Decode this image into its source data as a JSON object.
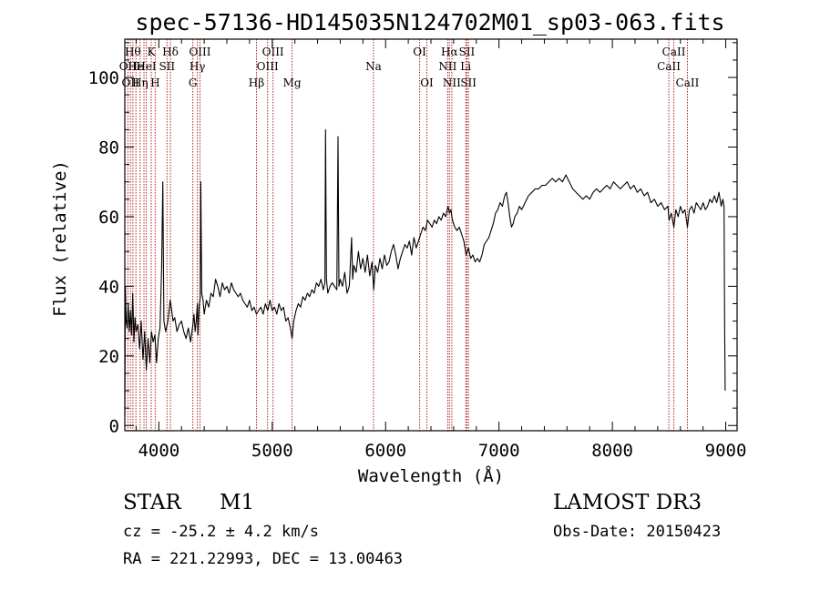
{
  "chart_data": {
    "type": "line",
    "title": "spec-57136-HD145035N124702M01_sp03-063.fits",
    "xlabel": "Wavelength (Å)",
    "ylabel": "Flux (relative)",
    "xlim": [
      3700,
      9100
    ],
    "ylim": [
      -1.5,
      111
    ],
    "x_ticks": [
      4000,
      5000,
      6000,
      7000,
      8000,
      9000
    ],
    "y_ticks": [
      0,
      20,
      40,
      60,
      80,
      100
    ],
    "grid": false,
    "series": [
      {
        "name": "spectrum",
        "points": [
          [
            3700,
            3
          ],
          [
            3705,
            40
          ],
          [
            3712,
            30
          ],
          [
            3720,
            28
          ],
          [
            3730,
            35
          ],
          [
            3740,
            27
          ],
          [
            3750,
            33
          ],
          [
            3760,
            26
          ],
          [
            3770,
            38
          ],
          [
            3780,
            24
          ],
          [
            3790,
            31
          ],
          [
            3800,
            27
          ],
          [
            3815,
            29
          ],
          [
            3830,
            22
          ],
          [
            3845,
            30
          ],
          [
            3860,
            19
          ],
          [
            3875,
            27
          ],
          [
            3890,
            16
          ],
          [
            3905,
            25
          ],
          [
            3920,
            18
          ],
          [
            3935,
            27
          ],
          [
            3950,
            24
          ],
          [
            3965,
            26
          ],
          [
            3980,
            18
          ],
          [
            3995,
            25
          ],
          [
            4010,
            28
          ],
          [
            4025,
            45
          ],
          [
            4035,
            70
          ],
          [
            4045,
            30
          ],
          [
            4060,
            27
          ],
          [
            4080,
            30
          ],
          [
            4100,
            36
          ],
          [
            4110,
            34
          ],
          [
            4125,
            30
          ],
          [
            4140,
            31
          ],
          [
            4160,
            27
          ],
          [
            4180,
            29
          ],
          [
            4200,
            30
          ],
          [
            4220,
            27
          ],
          [
            4240,
            25
          ],
          [
            4260,
            28
          ],
          [
            4280,
            24
          ],
          [
            4300,
            29
          ],
          [
            4310,
            32
          ],
          [
            4320,
            27
          ],
          [
            4330,
            30
          ],
          [
            4340,
            35
          ],
          [
            4345,
            26
          ],
          [
            4355,
            34
          ],
          [
            4365,
            37
          ],
          [
            4370,
            70
          ],
          [
            4378,
            38
          ],
          [
            4390,
            36
          ],
          [
            4400,
            32
          ],
          [
            4420,
            36
          ],
          [
            4440,
            34
          ],
          [
            4460,
            38
          ],
          [
            4480,
            37
          ],
          [
            4500,
            42
          ],
          [
            4520,
            40
          ],
          [
            4540,
            37
          ],
          [
            4560,
            41
          ],
          [
            4580,
            39
          ],
          [
            4600,
            40
          ],
          [
            4620,
            38
          ],
          [
            4640,
            41
          ],
          [
            4660,
            39
          ],
          [
            4680,
            38
          ],
          [
            4700,
            37
          ],
          [
            4720,
            38
          ],
          [
            4740,
            36
          ],
          [
            4760,
            35
          ],
          [
            4780,
            34
          ],
          [
            4800,
            36
          ],
          [
            4820,
            33
          ],
          [
            4840,
            34
          ],
          [
            4861,
            32
          ],
          [
            4880,
            33
          ],
          [
            4900,
            34
          ],
          [
            4920,
            32
          ],
          [
            4940,
            35
          ],
          [
            4960,
            33
          ],
          [
            4980,
            36
          ],
          [
            5000,
            33
          ],
          [
            5020,
            34
          ],
          [
            5040,
            32
          ],
          [
            5060,
            35
          ],
          [
            5080,
            33
          ],
          [
            5100,
            34
          ],
          [
            5120,
            30
          ],
          [
            5140,
            31
          ],
          [
            5160,
            28
          ],
          [
            5175,
            25
          ],
          [
            5190,
            30
          ],
          [
            5210,
            33
          ],
          [
            5230,
            35
          ],
          [
            5250,
            34
          ],
          [
            5270,
            37
          ],
          [
            5290,
            36
          ],
          [
            5310,
            38
          ],
          [
            5330,
            37
          ],
          [
            5350,
            39
          ],
          [
            5370,
            38
          ],
          [
            5390,
            41
          ],
          [
            5410,
            40
          ],
          [
            5430,
            42
          ],
          [
            5450,
            39
          ],
          [
            5465,
            41
          ],
          [
            5470,
            85
          ],
          [
            5478,
            42
          ],
          [
            5490,
            38
          ],
          [
            5510,
            40
          ],
          [
            5530,
            41
          ],
          [
            5550,
            40
          ],
          [
            5570,
            39
          ],
          [
            5580,
            83
          ],
          [
            5588,
            40
          ],
          [
            5600,
            42
          ],
          [
            5620,
            40
          ],
          [
            5640,
            44
          ],
          [
            5660,
            38
          ],
          [
            5680,
            40
          ],
          [
            5700,
            54
          ],
          [
            5710,
            42
          ],
          [
            5720,
            46
          ],
          [
            5740,
            44
          ],
          [
            5760,
            50
          ],
          [
            5780,
            45
          ],
          [
            5800,
            48
          ],
          [
            5820,
            44
          ],
          [
            5840,
            49
          ],
          [
            5860,
            43
          ],
          [
            5880,
            47
          ],
          [
            5895,
            39
          ],
          [
            5910,
            46
          ],
          [
            5930,
            44
          ],
          [
            5950,
            48
          ],
          [
            5970,
            45
          ],
          [
            5990,
            49
          ],
          [
            6010,
            46
          ],
          [
            6030,
            47
          ],
          [
            6050,
            50
          ],
          [
            6070,
            52
          ],
          [
            6090,
            49
          ],
          [
            6110,
            45
          ],
          [
            6130,
            48
          ],
          [
            6150,
            50
          ],
          [
            6170,
            52
          ],
          [
            6190,
            51
          ],
          [
            6210,
            53
          ],
          [
            6230,
            49
          ],
          [
            6250,
            54
          ],
          [
            6270,
            51
          ],
          [
            6290,
            53
          ],
          [
            6310,
            55
          ],
          [
            6330,
            57
          ],
          [
            6350,
            56
          ],
          [
            6370,
            59
          ],
          [
            6390,
            58
          ],
          [
            6410,
            57
          ],
          [
            6430,
            59
          ],
          [
            6450,
            58
          ],
          [
            6470,
            60
          ],
          [
            6490,
            59
          ],
          [
            6510,
            61
          ],
          [
            6530,
            60
          ],
          [
            6550,
            63
          ],
          [
            6563,
            61
          ],
          [
            6575,
            62
          ],
          [
            6590,
            59
          ],
          [
            6610,
            57
          ],
          [
            6630,
            56
          ],
          [
            6650,
            57
          ],
          [
            6670,
            55
          ],
          [
            6690,
            53
          ],
          [
            6710,
            49
          ],
          [
            6730,
            51
          ],
          [
            6750,
            48
          ],
          [
            6770,
            49
          ],
          [
            6790,
            47
          ],
          [
            6810,
            48
          ],
          [
            6830,
            47
          ],
          [
            6850,
            49
          ],
          [
            6870,
            52
          ],
          [
            6890,
            53
          ],
          [
            6910,
            54
          ],
          [
            6930,
            56
          ],
          [
            6950,
            58
          ],
          [
            6970,
            61
          ],
          [
            6990,
            62
          ],
          [
            7010,
            64
          ],
          [
            7030,
            63
          ],
          [
            7050,
            66
          ],
          [
            7065,
            67
          ],
          [
            7080,
            64
          ],
          [
            7095,
            60
          ],
          [
            7110,
            57
          ],
          [
            7125,
            58
          ],
          [
            7140,
            60
          ],
          [
            7160,
            61
          ],
          [
            7180,
            63
          ],
          [
            7200,
            62
          ],
          [
            7230,
            64
          ],
          [
            7260,
            66
          ],
          [
            7290,
            67
          ],
          [
            7320,
            68
          ],
          [
            7350,
            68
          ],
          [
            7380,
            69
          ],
          [
            7410,
            69
          ],
          [
            7440,
            70
          ],
          [
            7470,
            71
          ],
          [
            7500,
            70
          ],
          [
            7530,
            71
          ],
          [
            7560,
            70
          ],
          [
            7590,
            72
          ],
          [
            7620,
            70
          ],
          [
            7650,
            68
          ],
          [
            7680,
            67
          ],
          [
            7710,
            66
          ],
          [
            7740,
            65
          ],
          [
            7770,
            66
          ],
          [
            7800,
            65
          ],
          [
            7830,
            67
          ],
          [
            7860,
            68
          ],
          [
            7890,
            67
          ],
          [
            7920,
            68
          ],
          [
            7950,
            69
          ],
          [
            7980,
            68
          ],
          [
            8010,
            70
          ],
          [
            8040,
            69
          ],
          [
            8070,
            68
          ],
          [
            8100,
            69
          ],
          [
            8130,
            70
          ],
          [
            8160,
            68
          ],
          [
            8190,
            69
          ],
          [
            8220,
            67
          ],
          [
            8250,
            68
          ],
          [
            8280,
            66
          ],
          [
            8310,
            67
          ],
          [
            8340,
            64
          ],
          [
            8370,
            65
          ],
          [
            8400,
            63
          ],
          [
            8430,
            64
          ],
          [
            8460,
            62
          ],
          [
            8490,
            63
          ],
          [
            8500,
            59
          ],
          [
            8520,
            61
          ],
          [
            8542,
            57
          ],
          [
            8560,
            62
          ],
          [
            8580,
            60
          ],
          [
            8600,
            63
          ],
          [
            8620,
            61
          ],
          [
            8640,
            62
          ],
          [
            8662,
            57
          ],
          [
            8680,
            62
          ],
          [
            8700,
            63
          ],
          [
            8720,
            61
          ],
          [
            8740,
            64
          ],
          [
            8760,
            63
          ],
          [
            8780,
            62
          ],
          [
            8800,
            64
          ],
          [
            8820,
            62
          ],
          [
            8840,
            63
          ],
          [
            8860,
            65
          ],
          [
            8880,
            64
          ],
          [
            8900,
            66
          ],
          [
            8920,
            64
          ],
          [
            8940,
            67
          ],
          [
            8960,
            63
          ],
          [
            8975,
            65
          ],
          [
            8985,
            63
          ],
          [
            8990,
            30
          ],
          [
            8995,
            10
          ]
        ]
      }
    ],
    "line_markers": [
      {
        "wavelength": 3727,
        "label": "OII",
        "row": 2
      },
      {
        "wavelength": 3750,
        "label": "OII",
        "row": 3
      },
      {
        "wavelength": 3771,
        "label": "Hθ",
        "row": 1
      },
      {
        "wavelength": 3798,
        "label": "He",
        "row": 2
      },
      {
        "wavelength": 3835,
        "label": "Hη",
        "row": 3
      },
      {
        "wavelength": 3869,
        "label": "",
        "row": 2
      },
      {
        "wavelength": 3889,
        "label": "HeI",
        "row": 2
      },
      {
        "wavelength": 3933,
        "label": "K",
        "row": 1
      },
      {
        "wavelength": 3968,
        "label": "H",
        "row": 3
      },
      {
        "wavelength": 4072,
        "label": "SII",
        "row": 2
      },
      {
        "wavelength": 4102,
        "label": "Hδ",
        "row": 1
      },
      {
        "wavelength": 4300,
        "label": "G",
        "row": 3
      },
      {
        "wavelength": 4340,
        "label": "Hγ",
        "row": 2
      },
      {
        "wavelength": 4363,
        "label": "OIII",
        "row": 1
      },
      {
        "wavelength": 4861,
        "label": "Hβ",
        "row": 3
      },
      {
        "wavelength": 4959,
        "label": "OIII",
        "row": 2
      },
      {
        "wavelength": 5007,
        "label": "OIII",
        "row": 1
      },
      {
        "wavelength": 5175,
        "label": "Mg",
        "row": 3
      },
      {
        "wavelength": 5893,
        "label": "Na",
        "row": 2
      },
      {
        "wavelength": 6300,
        "label": "OI",
        "row": 1
      },
      {
        "wavelength": 6364,
        "label": "OI",
        "row": 3
      },
      {
        "wavelength": 6548,
        "label": "NII",
        "row": 2
      },
      {
        "wavelength": 6563,
        "label": "Hα",
        "row": 1
      },
      {
        "wavelength": 6584,
        "label": "NII",
        "row": 3
      },
      {
        "wavelength": 6707,
        "label": "Li",
        "row": 2
      },
      {
        "wavelength": 6717,
        "label": "SII",
        "row": 1
      },
      {
        "wavelength": 6731,
        "label": "SII",
        "row": 3
      },
      {
        "wavelength": 8498,
        "label": "CaII",
        "row": 2
      },
      {
        "wavelength": 8542,
        "label": "CaII",
        "row": 1
      },
      {
        "wavelength": 8662,
        "label": "CaII",
        "row": 3
      }
    ],
    "marker_color": "#b22222"
  },
  "info": {
    "object_class": "STAR",
    "subclass": "M1",
    "survey": "LAMOST DR3",
    "redshift": "cz = -25.2 ± 4.2 km/s",
    "obs_date": "Obs-Date: 20150423",
    "coords": "RA = 221.22993, DEC =  13.00463"
  }
}
